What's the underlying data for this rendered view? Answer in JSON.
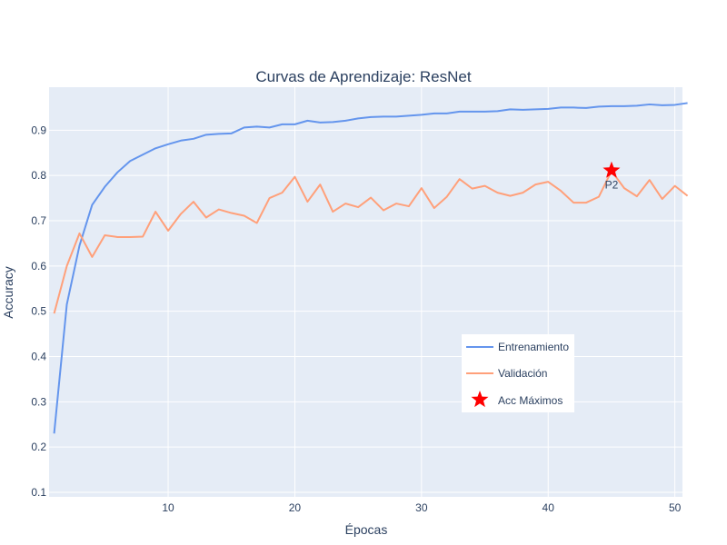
{
  "colors": {
    "plot_bg": "#e5ecf6",
    "grid": "#ffffff",
    "text": "#2a3f5f",
    "train": "#6495ed",
    "val": "#ffa07a",
    "marker": "#ff0000"
  },
  "chart_data": {
    "type": "line",
    "title": "Curvas de Aprendizaje: ResNet",
    "xlabel": "Épocas",
    "ylabel": "Accuracy",
    "xlim": [
      0.6,
      50.6
    ],
    "ylim": [
      0.09,
      0.995
    ],
    "xticks": [
      10,
      20,
      30,
      40,
      50
    ],
    "yticks": [
      0.1,
      0.2,
      0.3,
      0.4,
      0.5,
      0.6,
      0.7,
      0.8,
      0.9
    ],
    "grid": true,
    "legend_position": "bottom-right inside",
    "x": [
      1,
      2,
      3,
      4,
      5,
      6,
      7,
      8,
      9,
      10,
      11,
      12,
      13,
      14,
      15,
      16,
      17,
      18,
      19,
      20,
      21,
      22,
      23,
      24,
      25,
      26,
      27,
      28,
      29,
      30,
      31,
      32,
      33,
      34,
      35,
      36,
      37,
      38,
      39,
      40,
      41,
      42,
      43,
      44,
      45,
      46,
      47,
      48,
      49,
      50,
      51
    ],
    "series": [
      {
        "name": "Entrenamiento",
        "color": "#6495ed",
        "values": [
          0.23,
          0.515,
          0.645,
          0.735,
          0.775,
          0.807,
          0.832,
          0.846,
          0.86,
          0.869,
          0.877,
          0.881,
          0.89,
          0.892,
          0.893,
          0.906,
          0.908,
          0.906,
          0.913,
          0.913,
          0.921,
          0.917,
          0.918,
          0.921,
          0.926,
          0.929,
          0.93,
          0.93,
          0.932,
          0.934,
          0.937,
          0.937,
          0.941,
          0.941,
          0.941,
          0.942,
          0.946,
          0.945,
          0.946,
          0.947,
          0.95,
          0.95,
          0.949,
          0.952,
          0.953,
          0.953,
          0.954,
          0.957,
          0.955,
          0.956,
          0.96
        ]
      },
      {
        "name": "Validación",
        "color": "#ffa07a",
        "values": [
          0.495,
          0.6,
          0.672,
          0.62,
          0.668,
          0.664,
          0.664,
          0.665,
          0.72,
          0.678,
          0.715,
          0.742,
          0.707,
          0.725,
          0.717,
          0.711,
          0.695,
          0.75,
          0.762,
          0.797,
          0.742,
          0.78,
          0.72,
          0.738,
          0.73,
          0.751,
          0.723,
          0.738,
          0.732,
          0.772,
          0.728,
          0.753,
          0.792,
          0.771,
          0.777,
          0.762,
          0.755,
          0.762,
          0.78,
          0.786,
          0.766,
          0.74,
          0.74,
          0.753,
          0.81,
          0.772,
          0.754,
          0.79,
          0.748,
          0.777,
          0.755
        ]
      }
    ],
    "markers": [
      {
        "name": "Acc Máximos",
        "x": 45,
        "y": 0.811,
        "label": "P2",
        "symbol": "star",
        "color": "#ff0000"
      }
    ]
  }
}
